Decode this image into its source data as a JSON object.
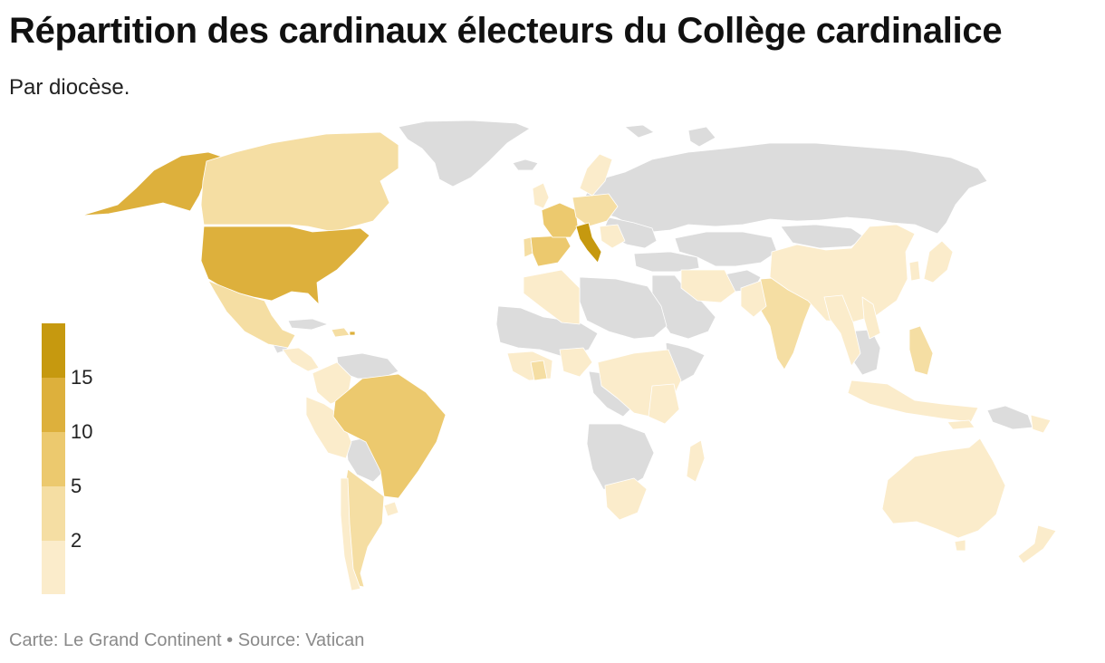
{
  "header": {
    "title": "Répartition des cardinaux électeurs du Collège cardinalice",
    "subtitle": "Par diocèse."
  },
  "legend": {
    "ticks": [
      "15",
      "10",
      "5",
      "2"
    ],
    "colors": [
      "#c6990f",
      "#ddb03c",
      "#ecc96e",
      "#f5dea3",
      "#fbeccb"
    ],
    "no_data_color": "#dcdcdc"
  },
  "map": {
    "scale_classes": [
      {
        "class": 1,
        "min": 0,
        "max": 2
      },
      {
        "class": 2,
        "min": 2,
        "max": 5
      },
      {
        "class": 3,
        "min": 5,
        "max": 10
      },
      {
        "class": 4,
        "min": 10,
        "max": 15
      },
      {
        "class": 5,
        "min": 15,
        "max": null
      }
    ]
  },
  "footer": {
    "credit": "Carte: Le Grand Continent",
    "separator": " • ",
    "source": "Source: Vatican"
  }
}
